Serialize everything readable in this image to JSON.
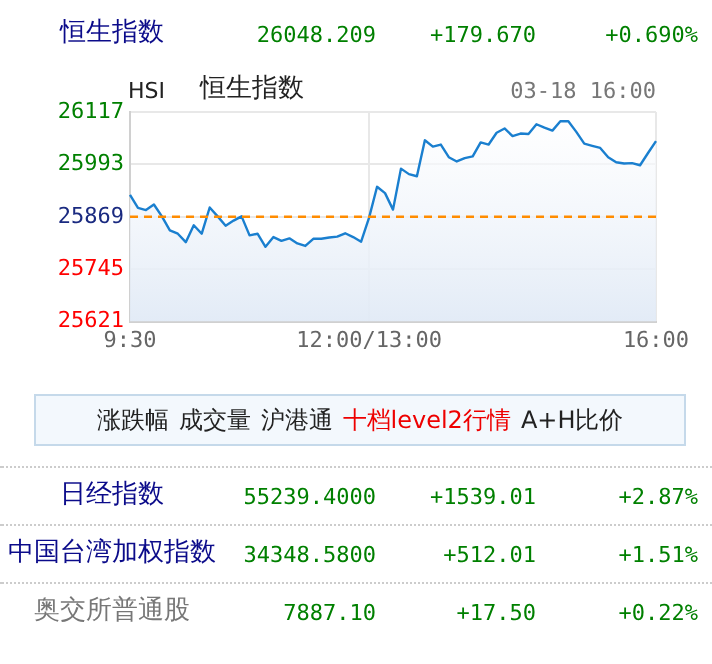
{
  "chart_data": {
    "type": "area",
    "title": "恒生指数",
    "subtitle": "HSI",
    "annotations": [
      "恒生指数",
      "26048.209",
      "+179.670",
      "+0.690%",
      "03-18 16:00",
      "涨跌幅",
      "成交量",
      "沪港通",
      "十档level2行情",
      "A+H比价",
      "日经指数",
      "55239.4000",
      "+1539.01",
      "+2.87%",
      "中国台湾加权指数",
      "34348.5800",
      "+512.01",
      "+1.51%",
      "奥交所普通股",
      "7887.10",
      "+17.50",
      "+0.22%"
    ],
    "categories": [
      "9:30",
      null,
      null,
      null,
      null,
      null,
      null,
      null,
      null,
      null,
      null,
      null,
      null,
      null,
      null,
      null,
      null,
      null,
      null,
      null,
      null,
      null,
      null,
      null,
      null,
      null,
      null,
      null,
      null,
      null,
      "12:00/13:00",
      null,
      null,
      null,
      null,
      null,
      null,
      null,
      null,
      null,
      null,
      null,
      null,
      null,
      null,
      null,
      null,
      null,
      null,
      null,
      null,
      null,
      null,
      null,
      null,
      null,
      null,
      null,
      null,
      null,
      null,
      null,
      null,
      null,
      null,
      null,
      "16:00"
    ],
    "series": [
      {
        "color": "#1a7fcf",
        "values": [
          25921,
          25890,
          25885,
          25898,
          25870,
          25837,
          25829,
          25809,
          25849,
          25829,
          25891,
          25870,
          25848,
          25860,
          25870,
          25825,
          25829,
          25798,
          25821,
          25812,
          25818,
          25806,
          25800,
          25817,
          25817,
          25820,
          25822,
          25830,
          25821,
          25810,
          25867,
          25940,
          25925,
          25886,
          25983,
          25970,
          25965,
          26050,
          26035,
          26040,
          26010,
          26000,
          26008,
          26012,
          26045,
          26040,
          26068,
          26078,
          26060,
          26066,
          26065,
          26088,
          26080,
          26073,
          26095,
          26095,
          26070,
          26042,
          26037,
          26032,
          26010,
          25998,
          25995,
          25996,
          25991,
          26020,
          26048
        ]
      }
    ],
    "ylim": [
      25621,
      26117
    ],
    "yticks": [
      25621,
      25745,
      25869,
      25993,
      26117
    ],
    "ref_lines": [
      {
        "axis": "y",
        "value": 25869,
        "color": "#ff8c00",
        "line_style": "dashed"
      }
    ],
    "grid": true,
    "legend": false
  }
}
